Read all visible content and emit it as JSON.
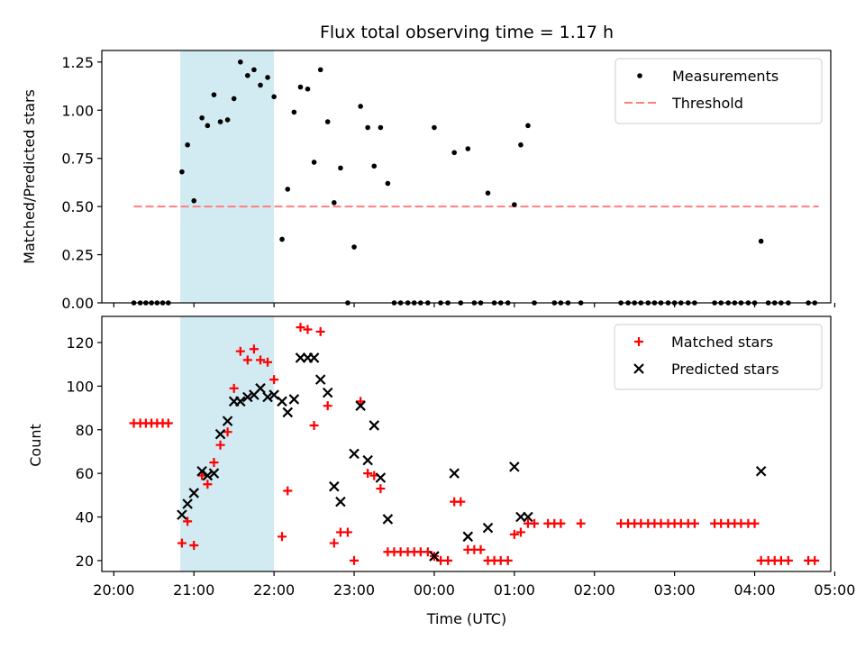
{
  "chart_data": [
    {
      "type": "scatter",
      "title": "Flux total observing time = 1.17 h",
      "xlabel": "",
      "ylabel": "Matched/Predicted stars",
      "xlim": [
        -0.15,
        8.95
      ],
      "ylim": [
        0,
        1.31
      ],
      "yticks": [
        0.0,
        0.25,
        0.5,
        0.75,
        1.0,
        1.25
      ],
      "ytick_labels": [
        "0.00",
        "0.25",
        "0.50",
        "0.75",
        "1.00",
        "1.25"
      ],
      "xticks": [
        0,
        1,
        2,
        3,
        4,
        5,
        6,
        7,
        8,
        9
      ],
      "shaded_span": [
        0.83,
        2.0
      ],
      "shaded_color": "#add8e6",
      "legend_position": "top-right",
      "threshold": {
        "name": "Threshold",
        "x": [
          0.25,
          8.8
        ],
        "y": 0.5,
        "color": "#ff7f7f"
      },
      "series": [
        {
          "name": "Measurements",
          "color": "#000000",
          "marker": "dot",
          "x": [
            0.25,
            0.33,
            0.4,
            0.47,
            0.54,
            0.61,
            0.68,
            0.85,
            0.92,
            1.0,
            1.1,
            1.17,
            1.25,
            1.33,
            1.42,
            1.5,
            1.58,
            1.67,
            1.75,
            1.83,
            1.92,
            2.0,
            2.1,
            2.17,
            2.25,
            2.33,
            2.42,
            2.5,
            2.58,
            2.67,
            2.75,
            2.83,
            2.92,
            3.0,
            3.08,
            3.17,
            3.25,
            3.33,
            3.42,
            3.5,
            3.58,
            3.67,
            3.75,
            3.83,
            3.92,
            4.0,
            4.08,
            4.17,
            4.25,
            4.33,
            4.42,
            4.5,
            4.58,
            4.67,
            4.75,
            4.83,
            4.92,
            5.0,
            5.08,
            5.17,
            5.25,
            5.5,
            5.58,
            5.67,
            5.83,
            6.33,
            6.42,
            6.5,
            6.58,
            6.67,
            6.75,
            6.83,
            6.92,
            7.0,
            7.08,
            7.17,
            7.25,
            7.5,
            7.58,
            7.67,
            7.75,
            7.83,
            7.92,
            8.0,
            8.08,
            8.17,
            8.25,
            8.33,
            8.42,
            8.67,
            8.75
          ],
          "y": [
            0,
            0,
            0,
            0,
            0,
            0,
            0,
            0.68,
            0.82,
            0.53,
            0.96,
            0.92,
            1.08,
            0.94,
            0.95,
            1.06,
            1.25,
            1.18,
            1.21,
            1.13,
            1.17,
            1.07,
            0.33,
            0.59,
            0.99,
            1.12,
            1.11,
            0.73,
            1.21,
            0.94,
            0.52,
            0.7,
            0,
            0.29,
            1.02,
            0.91,
            0.71,
            0.91,
            0.62,
            0,
            0,
            0,
            0,
            0,
            0,
            0.91,
            0,
            0,
            0.78,
            0,
            0.8,
            0,
            0,
            0.57,
            0,
            0,
            0,
            0.51,
            0.82,
            0.92,
            0,
            0,
            0,
            0,
            0,
            0,
            0,
            0,
            0,
            0,
            0,
            0,
            0,
            0,
            0,
            0,
            0,
            0,
            0,
            0,
            0,
            0,
            0,
            0,
            0.32,
            0,
            0,
            0,
            0,
            0,
            0
          ]
        }
      ]
    },
    {
      "type": "scatter",
      "title": "",
      "xlabel": "Time (UTC)",
      "ylabel": "Count",
      "xlim": [
        -0.15,
        8.95
      ],
      "ylim": [
        15,
        132
      ],
      "yticks": [
        20,
        40,
        60,
        80,
        100,
        120
      ],
      "xticks": [
        0,
        1,
        2,
        3,
        4,
        5,
        6,
        7,
        8,
        9
      ],
      "xtick_labels": [
        "20:00",
        "21:00",
        "22:00",
        "23:00",
        "00:00",
        "01:00",
        "02:00",
        "03:00",
        "04:00",
        "05:00"
      ],
      "shaded_span": [
        0.83,
        2.0
      ],
      "shaded_color": "#add8e6",
      "legend_position": "top-right",
      "series": [
        {
          "name": "Matched stars",
          "color": "#ff0000",
          "marker": "plus",
          "x": [
            0.25,
            0.33,
            0.4,
            0.47,
            0.54,
            0.61,
            0.68,
            0.85,
            0.92,
            1.0,
            1.1,
            1.17,
            1.25,
            1.33,
            1.42,
            1.5,
            1.58,
            1.67,
            1.75,
            1.83,
            1.92,
            2.0,
            2.1,
            2.17,
            2.33,
            2.42,
            2.5,
            2.58,
            2.67,
            2.75,
            2.83,
            2.92,
            3.0,
            3.08,
            3.17,
            3.25,
            3.33,
            3.42,
            3.5,
            3.58,
            3.67,
            3.75,
            3.83,
            3.92,
            4.0,
            4.08,
            4.17,
            4.25,
            4.33,
            4.42,
            4.5,
            4.58,
            4.67,
            4.75,
            4.83,
            4.92,
            5.0,
            5.08,
            5.17,
            5.25,
            5.42,
            5.5,
            5.58,
            5.83,
            6.33,
            6.42,
            6.5,
            6.58,
            6.67,
            6.75,
            6.83,
            6.92,
            7.0,
            7.08,
            7.17,
            7.25,
            7.5,
            7.58,
            7.67,
            7.75,
            7.83,
            7.92,
            8.0,
            8.08,
            8.17,
            8.25,
            8.33,
            8.42,
            8.67,
            8.75
          ],
          "y": [
            83,
            83,
            83,
            83,
            83,
            83,
            83,
            28,
            38,
            27,
            59,
            55,
            65,
            73,
            79,
            99,
            116,
            112,
            117,
            112,
            111,
            103,
            31,
            52,
            127,
            126,
            82,
            125,
            91,
            28,
            33,
            33,
            20,
            93,
            60,
            59,
            53,
            24,
            24,
            24,
            24,
            24,
            24,
            24,
            22,
            20,
            20,
            47,
            47,
            25,
            25,
            25,
            20,
            20,
            20,
            20,
            32,
            33,
            37,
            37,
            37,
            37,
            37,
            37,
            37,
            37,
            37,
            37,
            37,
            37,
            37,
            37,
            37,
            37,
            37,
            37,
            37,
            37,
            37,
            37,
            37,
            37,
            37,
            20,
            20,
            20,
            20,
            20,
            20,
            20
          ]
        },
        {
          "name": "Predicted stars",
          "color": "#000000",
          "marker": "x",
          "x": [
            0.85,
            0.92,
            1.0,
            1.1,
            1.17,
            1.25,
            1.33,
            1.42,
            1.58,
            1.5,
            1.67,
            1.75,
            1.83,
            1.92,
            2.0,
            2.1,
            2.17,
            2.25,
            2.33,
            2.42,
            2.5,
            2.58,
            2.67,
            2.75,
            2.83,
            3.0,
            3.08,
            3.17,
            3.25,
            3.33,
            3.42,
            4.0,
            4.25,
            4.42,
            4.67,
            5.0,
            5.08,
            5.17,
            8.08
          ],
          "y": [
            41,
            46,
            51,
            61,
            59,
            60,
            78,
            84,
            93,
            93,
            95,
            96,
            99,
            95,
            96,
            93,
            88,
            94,
            113,
            113,
            113,
            103,
            97,
            54,
            47,
            69,
            91,
            66,
            82,
            58,
            39,
            22,
            60,
            31,
            35,
            63,
            40,
            40,
            61
          ]
        }
      ]
    }
  ]
}
